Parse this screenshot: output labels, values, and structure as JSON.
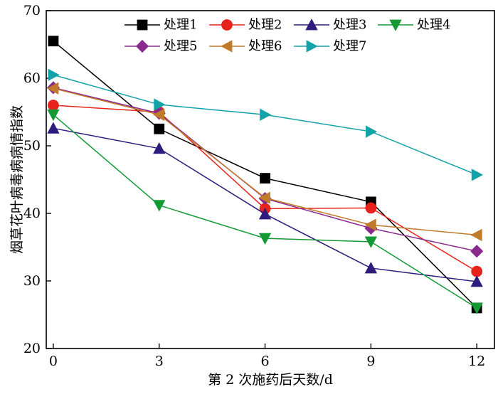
{
  "chart_data": {
    "type": "line",
    "title": "",
    "xlabel": "第 2 次施药后天数/d",
    "ylabel": "烟草花叶病毒病病情指数",
    "x": [
      0,
      3,
      6,
      9,
      12
    ],
    "xlim": [
      -0.2,
      12.5
    ],
    "ylim": [
      20,
      70
    ],
    "xticks": [
      "0",
      "3",
      "6",
      "9",
      "12"
    ],
    "yticks": [
      "20",
      "30",
      "40",
      "50",
      "60",
      "70"
    ],
    "legend_position": "top-right",
    "grid": false,
    "series": [
      {
        "name": "处理1",
        "color": "#000000",
        "marker": "square",
        "values": [
          65.5,
          52.5,
          45.2,
          41.7,
          26.0
        ]
      },
      {
        "name": "处理2",
        "color": "#e8231b",
        "marker": "circle",
        "values": [
          56.0,
          55.0,
          40.7,
          40.8,
          31.4
        ]
      },
      {
        "name": "处理3",
        "color": "#2e1b7e",
        "marker": "triangle-up",
        "values": [
          52.6,
          49.6,
          39.9,
          31.9,
          29.9
        ]
      },
      {
        "name": "处理4",
        "color": "#139a35",
        "marker": "triangle-down",
        "values": [
          54.6,
          41.2,
          36.3,
          35.8,
          26.0
        ]
      },
      {
        "name": "处理5",
        "color": "#8a2a8e",
        "marker": "diamond",
        "values": [
          58.6,
          54.8,
          42.2,
          37.8,
          34.4
        ]
      },
      {
        "name": "处理6",
        "color": "#c07a2a",
        "marker": "triangle-left",
        "values": [
          58.5,
          54.6,
          42.3,
          38.3,
          36.8
        ]
      },
      {
        "name": "处理7",
        "color": "#12a2a8",
        "marker": "triangle-right",
        "values": [
          60.5,
          56.1,
          54.6,
          52.1,
          45.7
        ]
      }
    ]
  }
}
